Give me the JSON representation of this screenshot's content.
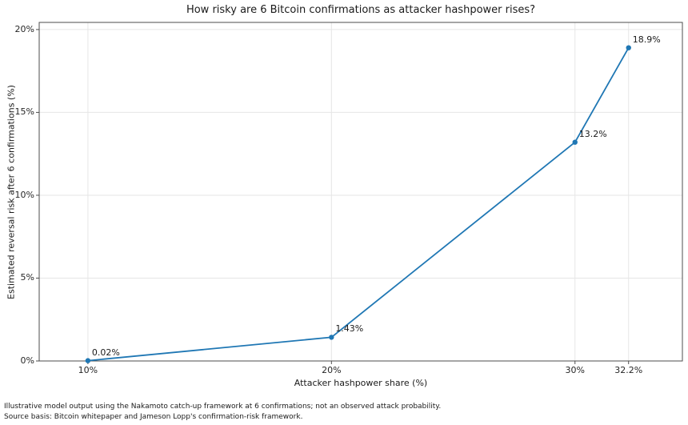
{
  "chart_data": {
    "type": "line",
    "title": "How risky are 6 Bitcoin confirmations as attacker hashpower rises?",
    "xlabel": "Attacker hashpower share (%)",
    "ylabel": "Estimated reversal risk after 6 confirmations (%)",
    "x": [
      10,
      20,
      30,
      32.2
    ],
    "values": [
      0.02,
      1.43,
      13.2,
      18.9
    ],
    "point_labels": [
      "0.02%",
      "1.43%",
      "13.2%",
      "18.9%"
    ],
    "x_tick_values": [
      10,
      20,
      30,
      32.2
    ],
    "x_tick_labels": [
      "10%",
      "20%",
      "30%",
      "32.2%"
    ],
    "y_tick_values": [
      0,
      5,
      10,
      15,
      20
    ],
    "y_tick_labels": [
      "0%",
      "5%",
      "10%",
      "15%",
      "20%"
    ],
    "xlim": [
      8.0,
      34.41
    ],
    "ylim": [
      0,
      20.43
    ],
    "grid": true,
    "legend_position": "none",
    "line_color": "#1f77b4",
    "grid_color": "#e6e6e6",
    "axis_color": "#4d4d4d",
    "text_color": "#1a1a1a"
  },
  "footnote": {
    "line1": "Illustrative model output using the Nakamoto catch-up framework at 6 confirmations; not an observed attack probability.",
    "line2": "Source basis: Bitcoin whitepaper and Jameson Lopp's confirmation-risk framework."
  }
}
